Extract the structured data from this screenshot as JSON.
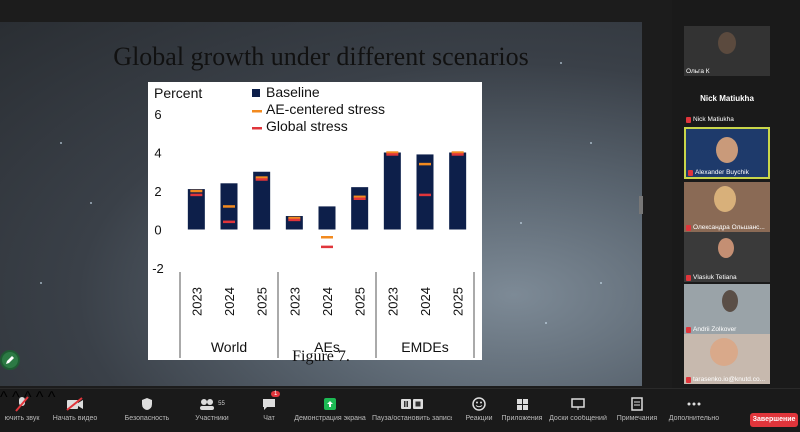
{
  "slide": {
    "title": "Global growth under different scenarios",
    "caption": "Figure 7."
  },
  "chart_data": {
    "type": "bar",
    "ylabel": "Percent",
    "ylim": [
      -2,
      6
    ],
    "yticks": [
      "6",
      "4",
      "2",
      "0",
      "-2"
    ],
    "groups": [
      "World",
      "AEs",
      "EMDEs"
    ],
    "years": [
      "2023",
      "2024",
      "2025"
    ],
    "legend": [
      "Baseline",
      "AE-centered stress",
      "Global stress"
    ],
    "series": [
      {
        "name": "Baseline",
        "color": "#0d1f4a",
        "values": [
          2.1,
          2.4,
          3.0,
          0.7,
          1.2,
          2.2,
          4.0,
          3.9,
          4.0
        ]
      },
      {
        "name": "AE-centered stress",
        "color": "#f28a1f",
        "values": [
          2.0,
          1.2,
          2.7,
          0.6,
          -0.4,
          1.7,
          4.0,
          3.4,
          4.0
        ]
      },
      {
        "name": "Global stress",
        "color": "#e0353b",
        "values": [
          1.8,
          0.4,
          2.6,
          0.5,
          -0.9,
          1.6,
          3.9,
          1.8,
          3.9
        ]
      }
    ]
  },
  "participants": {
    "tile1_name": "Ольга К",
    "tile2_big": "Nick Matiukha",
    "tile2_name": "Nick Matiukha",
    "tile3_name": "Alexander Buychik",
    "tile4_name": "Олександра Ольшанс...",
    "tile5_name": "Vlasiuk Tetiana",
    "tile6_name": "Andrii Zolkover",
    "tile7_name": "tarasenko.io@knutd.co..."
  },
  "toolbar": {
    "mic_label": "ючить звук",
    "video_label": "Начать видео",
    "security_label": "Безопасность",
    "participants_label": "Участники",
    "participants_count": "55",
    "chat_label": "Чат",
    "chat_badge": "1",
    "share_label": "Демонстрация экрана",
    "pause_label": "Пауза/остановить запись",
    "reactions_label": "Реакции",
    "apps_label": "Приложения",
    "whiteboard_label": "Доски сообщений",
    "notes_label": "Примечания",
    "more_label": "Дополнительно",
    "end_label": "Завершение"
  },
  "icons": {
    "mic": "mic-muted-icon",
    "video": "video-off-icon",
    "security": "shield-icon",
    "participants": "people-icon",
    "chat": "chat-icon",
    "share": "share-screen-icon",
    "pause": "pause-icon",
    "reactions": "smile-icon",
    "apps": "apps-icon",
    "whiteboard": "whiteboard-icon",
    "notes": "notes-icon",
    "more": "more-icon",
    "pen": "pen-icon"
  }
}
